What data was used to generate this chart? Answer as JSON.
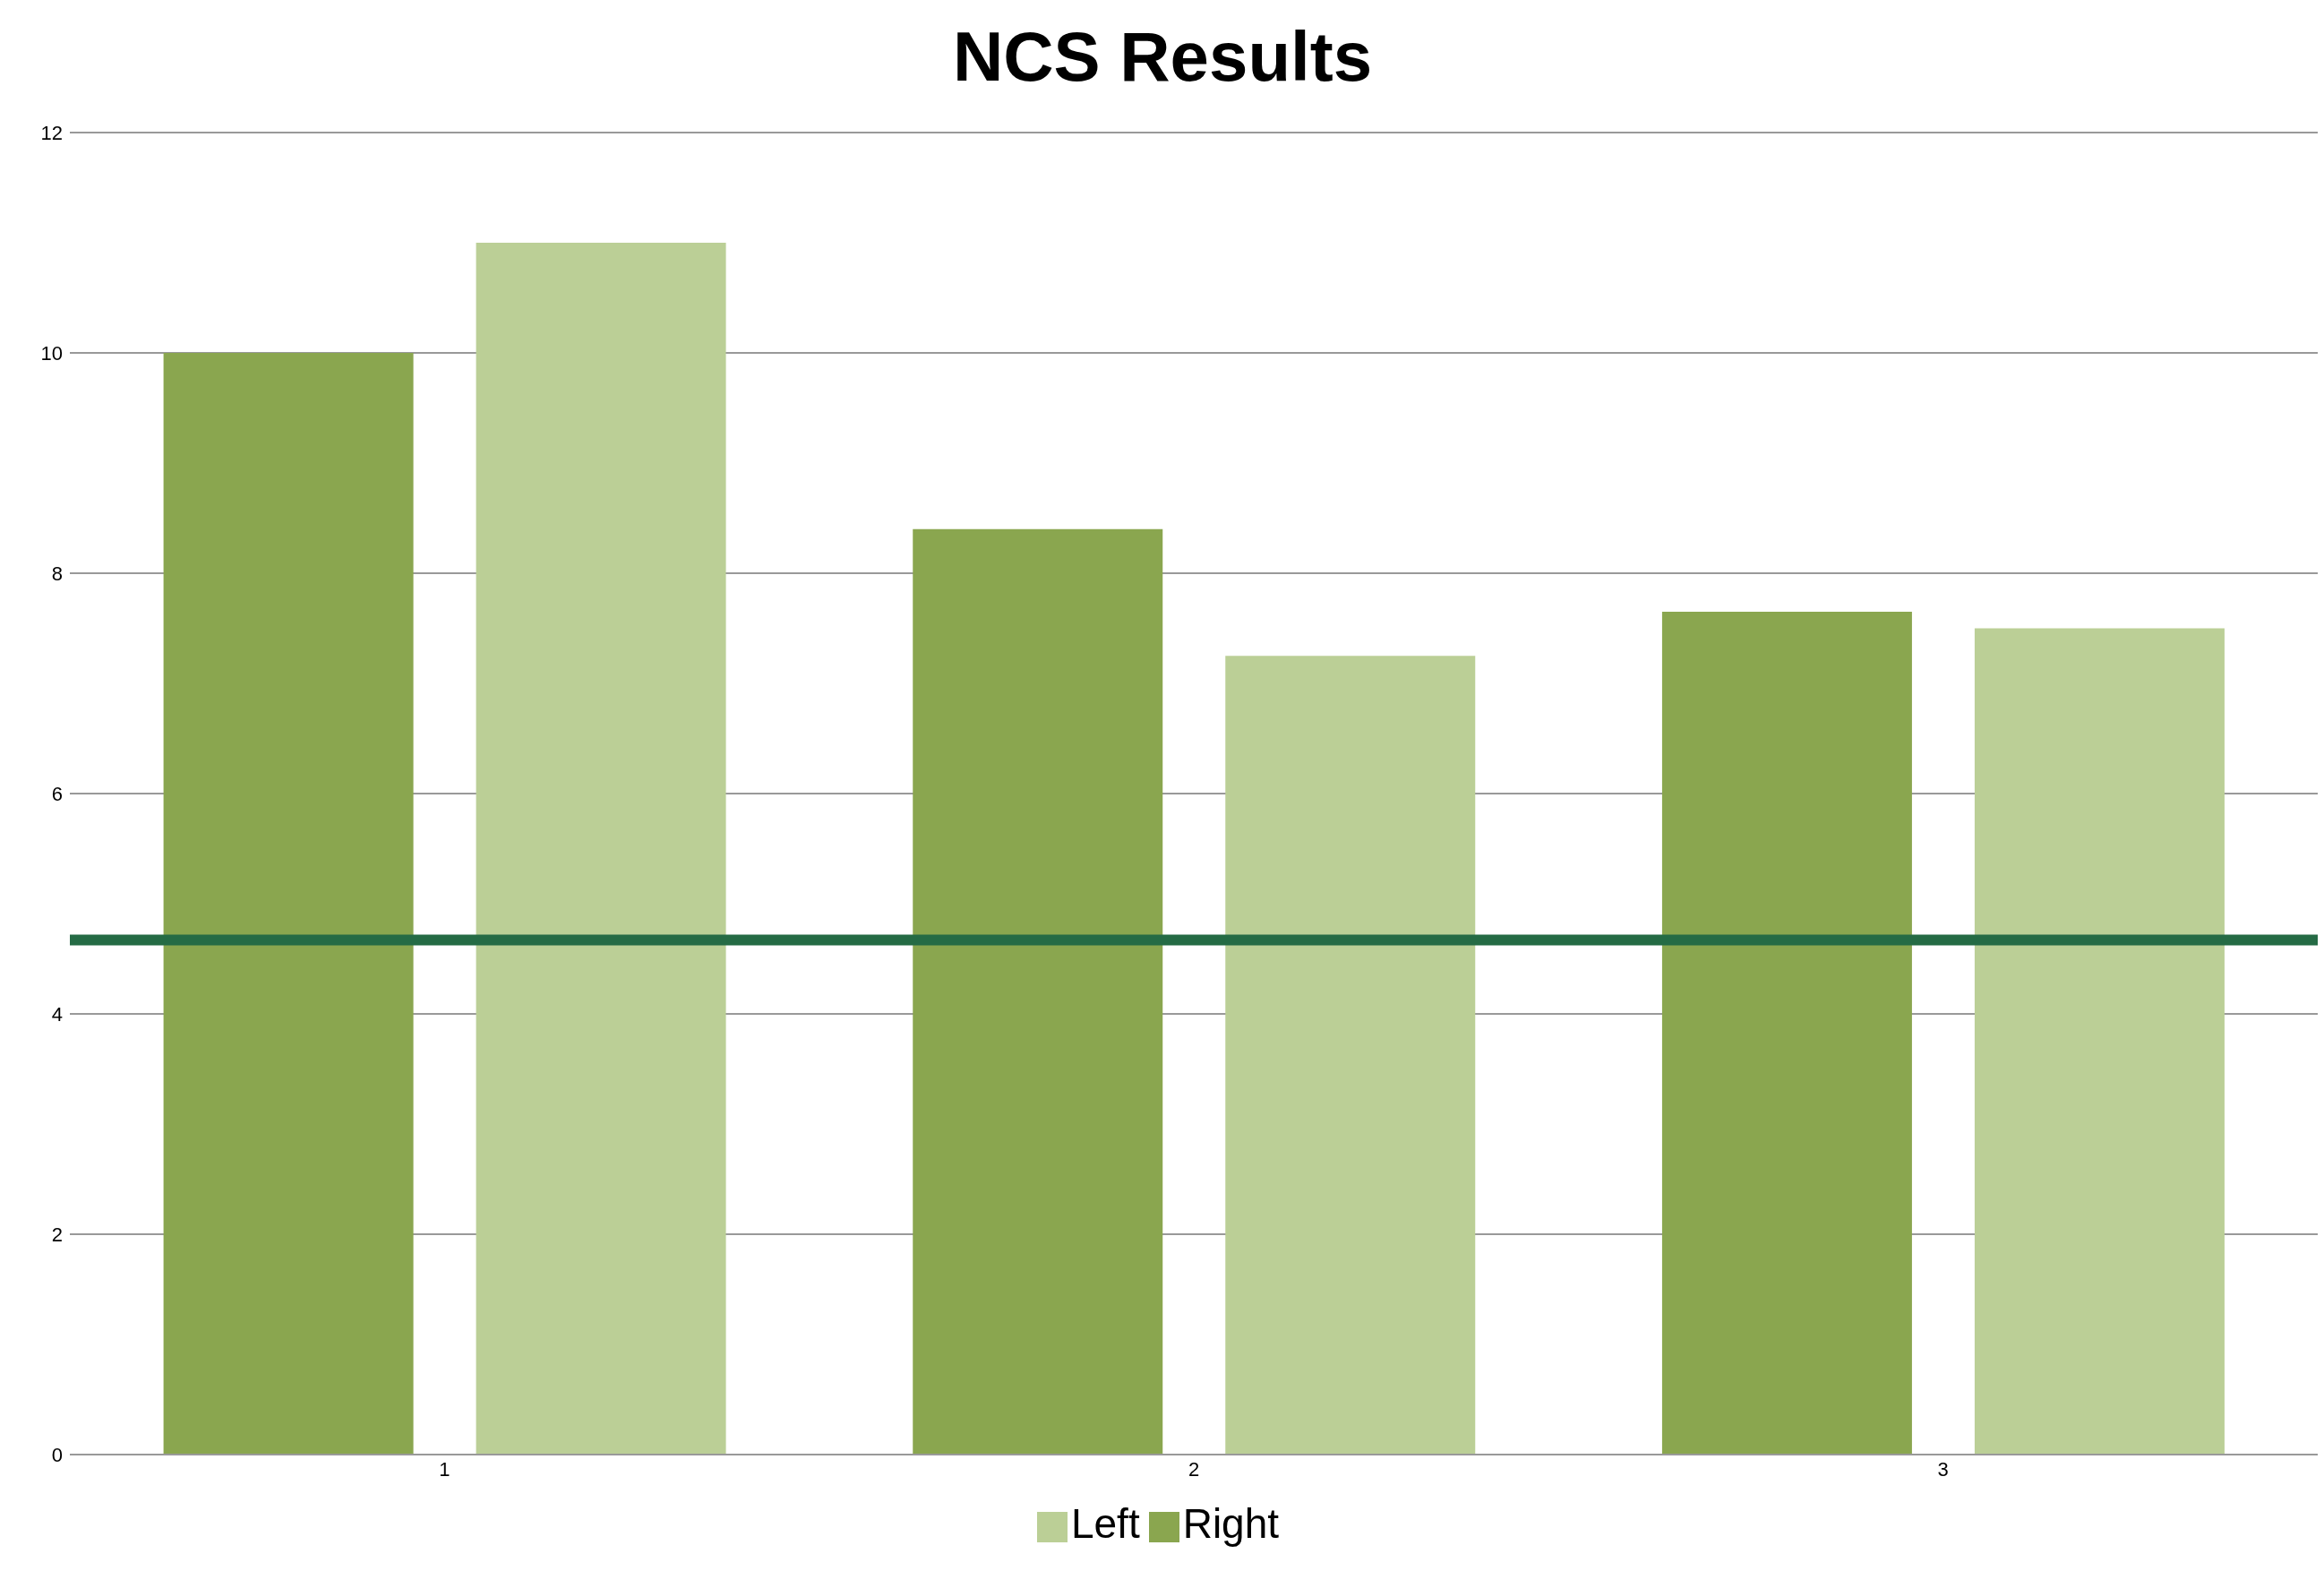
{
  "chart_data": {
    "type": "bar",
    "title": "NCS Results",
    "categories": [
      "1",
      "2",
      "3"
    ],
    "series": [
      {
        "name": "Right",
        "color": "#8aa64f",
        "values": [
          10,
          8.4,
          7.65
        ]
      },
      {
        "name": "Left",
        "color": "#bbcf96",
        "values": [
          11,
          7.25,
          7.5
        ]
      }
    ],
    "ylim": [
      0,
      12
    ],
    "yticks": [
      0,
      2,
      4,
      6,
      8,
      10,
      12
    ],
    "grid": "y",
    "legend": "bottom",
    "ref_lines": [
      {
        "axis": "y",
        "value": 4.67,
        "color": "#256b45"
      }
    ]
  }
}
